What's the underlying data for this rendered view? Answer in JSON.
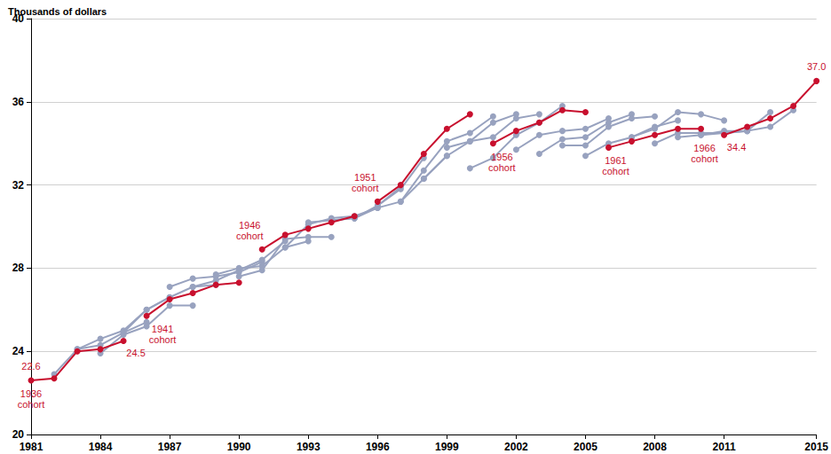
{
  "chart_data": {
    "type": "line",
    "y_label": "Thousands of dollars",
    "xlim": [
      1981,
      2015
    ],
    "xticks": [
      1981,
      1984,
      1987,
      1990,
      1993,
      1996,
      1999,
      2002,
      2005,
      2008,
      2011,
      2015
    ],
    "ylim": [
      20,
      40
    ],
    "yticks": [
      20,
      24,
      28,
      32,
      36,
      40
    ],
    "grid": true,
    "marker": "circle",
    "series": [
      {
        "color": "#98a2bf",
        "x": [
          1982,
          1983,
          1984,
          1985,
          1986
        ],
        "values": [
          22.9,
          24.1,
          24.3,
          24.9,
          25.4
        ]
      },
      {
        "color": "#98a2bf",
        "x": [
          1983,
          1984,
          1985,
          1986,
          1987
        ],
        "values": [
          24.1,
          24.6,
          25.0,
          26.0,
          26.6
        ]
      },
      {
        "color": "#98a2bf",
        "x": [
          1984,
          1985,
          1986,
          1987,
          1988
        ],
        "values": [
          23.9,
          24.8,
          25.2,
          26.2,
          26.2
        ]
      },
      {
        "color": "#98a2bf",
        "x": [
          1985,
          1986,
          1987,
          1988,
          1989
        ],
        "values": [
          24.9,
          26.0,
          26.6,
          27.1,
          27.2
        ]
      },
      {
        "color": "#98a2bf",
        "x": [
          1987,
          1988,
          1989,
          1990,
          1991
        ],
        "values": [
          27.1,
          27.5,
          27.6,
          27.8,
          28.3
        ]
      },
      {
        "color": "#98a2bf",
        "x": [
          1988,
          1989,
          1990,
          1991,
          1992
        ],
        "values": [
          27.1,
          27.4,
          27.9,
          28.4,
          29.3
        ]
      },
      {
        "color": "#98a2bf",
        "x": [
          1989,
          1990,
          1991,
          1992,
          1993
        ],
        "values": [
          27.7,
          28.0,
          28.1,
          29.0,
          29.3
        ]
      },
      {
        "color": "#98a2bf",
        "x": [
          1990,
          1991,
          1992,
          1993,
          1994
        ],
        "values": [
          27.6,
          27.9,
          29.4,
          29.5,
          29.5
        ]
      },
      {
        "color": "#98a2bf",
        "x": [
          1992,
          1993,
          1994,
          1995,
          1996
        ],
        "values": [
          29.0,
          30.1,
          30.4,
          30.5,
          30.9
        ]
      },
      {
        "color": "#98a2bf",
        "x": [
          1993,
          1994,
          1995,
          1996,
          1997
        ],
        "values": [
          30.2,
          30.3,
          30.4,
          31.0,
          31.9
        ]
      },
      {
        "color": "#98a2bf",
        "x": [
          1994,
          1995,
          1996,
          1997,
          1998
        ],
        "values": [
          30.3,
          30.4,
          31.0,
          31.8,
          33.3
        ]
      },
      {
        "color": "#98a2bf",
        "x": [
          1995,
          1996,
          1997,
          1998,
          1999
        ],
        "values": [
          30.4,
          30.9,
          31.2,
          32.3,
          33.4
        ]
      },
      {
        "color": "#98a2bf",
        "x": [
          1997,
          1998,
          1999,
          2000,
          2001
        ],
        "values": [
          31.2,
          32.7,
          34.1,
          34.5,
          35.3
        ]
      },
      {
        "color": "#98a2bf",
        "x": [
          1998,
          1999,
          2000,
          2001,
          2002
        ],
        "values": [
          32.3,
          33.4,
          34.1,
          35.0,
          35.4
        ]
      },
      {
        "color": "#98a2bf",
        "x": [
          1999,
          2000,
          2001,
          2002,
          2003
        ],
        "values": [
          33.8,
          34.1,
          34.3,
          35.2,
          35.4
        ]
      },
      {
        "color": "#98a2bf",
        "x": [
          2000,
          2001,
          2002,
          2003,
          2004
        ],
        "values": [
          32.8,
          33.3,
          34.4,
          35.0,
          35.8
        ]
      },
      {
        "color": "#98a2bf",
        "x": [
          2002,
          2003,
          2004,
          2005,
          2006
        ],
        "values": [
          33.7,
          34.4,
          34.6,
          34.7,
          35.2
        ]
      },
      {
        "color": "#98a2bf",
        "x": [
          2003,
          2004,
          2005,
          2006,
          2007
        ],
        "values": [
          33.5,
          34.2,
          34.3,
          35.0,
          35.4
        ]
      },
      {
        "color": "#98a2bf",
        "x": [
          2004,
          2005,
          2006,
          2007,
          2008
        ],
        "values": [
          33.9,
          33.9,
          34.8,
          35.2,
          35.3
        ]
      },
      {
        "color": "#98a2bf",
        "x": [
          2005,
          2006,
          2007,
          2008,
          2009
        ],
        "values": [
          33.4,
          34.0,
          34.3,
          34.8,
          35.1
        ]
      },
      {
        "color": "#98a2bf",
        "x": [
          2007,
          2008,
          2009,
          2010,
          2011
        ],
        "values": [
          34.3,
          34.7,
          35.5,
          35.4,
          35.1
        ]
      },
      {
        "color": "#98a2bf",
        "x": [
          2008,
          2009,
          2010,
          2011,
          2012
        ],
        "values": [
          34.0,
          34.5,
          34.5,
          34.5,
          34.6
        ]
      },
      {
        "color": "#98a2bf",
        "x": [
          2009,
          2010,
          2011,
          2012,
          2013
        ],
        "values": [
          34.3,
          34.4,
          34.6,
          34.6,
          35.5
        ]
      },
      {
        "color": "#98a2bf",
        "x": [
          2010,
          2011,
          2012,
          2013,
          2014
        ],
        "values": [
          34.4,
          34.5,
          34.6,
          34.8,
          35.6
        ]
      },
      {
        "name": "1936 cohort",
        "color": "#c8102e",
        "x": [
          1981,
          1982,
          1983,
          1984,
          1985
        ],
        "values": [
          22.6,
          22.7,
          24.0,
          24.1,
          24.5
        ],
        "value_labels": [
          "22.6",
          null,
          null,
          null,
          "24.5"
        ]
      },
      {
        "name": "1941 cohort",
        "color": "#c8102e",
        "x": [
          1986,
          1987,
          1988,
          1989,
          1990
        ],
        "values": [
          25.7,
          26.5,
          26.8,
          27.2,
          27.3
        ]
      },
      {
        "name": "1946 cohort",
        "color": "#c8102e",
        "x": [
          1991,
          1992,
          1993,
          1994,
          1995
        ],
        "values": [
          28.9,
          29.6,
          29.9,
          30.2,
          30.5
        ]
      },
      {
        "name": "1951 cohort",
        "color": "#c8102e",
        "x": [
          1996,
          1997,
          1998,
          1999,
          2000
        ],
        "values": [
          31.2,
          32.0,
          33.5,
          34.7,
          35.4
        ]
      },
      {
        "name": "1956 cohort",
        "color": "#c8102e",
        "x": [
          2001,
          2002,
          2003,
          2004,
          2005
        ],
        "values": [
          34.0,
          34.6,
          35.0,
          35.6,
          35.5
        ]
      },
      {
        "name": "1961 cohort",
        "color": "#c8102e",
        "x": [
          2006,
          2007,
          2008,
          2009,
          2010
        ],
        "values": [
          33.8,
          34.1,
          34.4,
          34.7,
          34.7
        ]
      },
      {
        "name": "1966 cohort",
        "color": "#c8102e",
        "x": [
          2011,
          2012,
          2013,
          2014,
          2015
        ],
        "values": [
          34.4,
          34.8,
          35.2,
          35.8,
          37.0
        ],
        "value_labels": [
          "34.4",
          null,
          null,
          null,
          "37.0"
        ]
      }
    ]
  }
}
